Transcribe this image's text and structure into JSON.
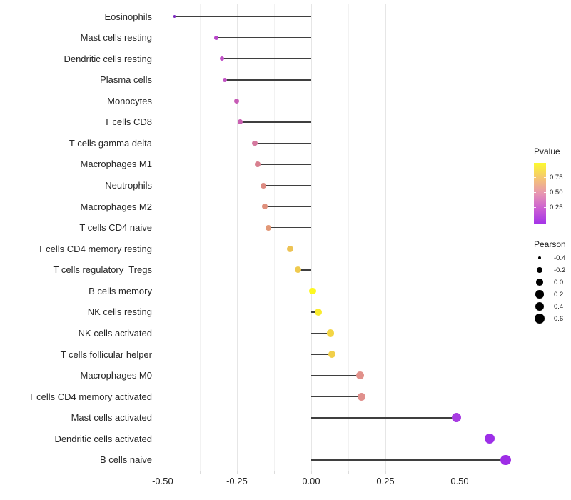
{
  "chart_data": {
    "type": "scatter",
    "subtype": "lollipop",
    "title": "",
    "xlabel": "",
    "ylabel": "",
    "xlim": [
      -0.519,
      0.709
    ],
    "x_ticks": [
      -0.5,
      -0.25,
      0,
      0.25,
      0.5
    ],
    "x_tick_labels": [
      "-0.50",
      "-0.25",
      "0.00",
      "0.25",
      "0.50"
    ],
    "x_minor_ticks": [
      -0.375,
      -0.125,
      0.125,
      0.375,
      0.625
    ],
    "grid": true,
    "baseline_x": 0,
    "rows": [
      {
        "label": "Eosinophils",
        "pearson": -0.46,
        "color": "#7c2bc0"
      },
      {
        "label": "Mast cells resting",
        "pearson": -0.32,
        "color": "#b846c9"
      },
      {
        "label": "Dendritic cells resting",
        "pearson": -0.3,
        "color": "#c04fc6"
      },
      {
        "label": "Plasma cells",
        "pearson": -0.29,
        "color": "#c253c3"
      },
      {
        "label": "Monocytes",
        "pearson": -0.25,
        "color": "#c75cb6"
      },
      {
        "label": "T cells CD8",
        "pearson": -0.24,
        "color": "#ca60b2"
      },
      {
        "label": "T cells gamma delta",
        "pearson": -0.19,
        "color": "#d5799f"
      },
      {
        "label": "Macrophages M1",
        "pearson": -0.18,
        "color": "#d8808f"
      },
      {
        "label": "Neutrophils",
        "pearson": -0.16,
        "color": "#dd8b82"
      },
      {
        "label": "Macrophages M2",
        "pearson": -0.155,
        "color": "#e0907d"
      },
      {
        "label": "T cells CD4 naive",
        "pearson": -0.145,
        "color": "#e29877"
      },
      {
        "label": "T cells CD4 memory resting",
        "pearson": -0.07,
        "color": "#edc355"
      },
      {
        "label": "T cells regulatory  Tregs",
        "pearson": -0.045,
        "color": "#efca4e"
      },
      {
        "label": "B cells memory",
        "pearson": 0.005,
        "color": "#fdf820"
      },
      {
        "label": "NK cells resting",
        "pearson": 0.025,
        "color": "#f9eb2e"
      },
      {
        "label": "NK cells activated",
        "pearson": 0.065,
        "color": "#f3d544"
      },
      {
        "label": "T cells follicular helper",
        "pearson": 0.07,
        "color": "#f1cf4a"
      },
      {
        "label": "Macrophages M0",
        "pearson": 0.165,
        "color": "#e1918b"
      },
      {
        "label": "T cells CD4 memory activated",
        "pearson": 0.17,
        "color": "#e0908d"
      },
      {
        "label": "Mast cells activated",
        "pearson": 0.49,
        "color": "#a83ce2"
      },
      {
        "label": "Dendritic cells activated",
        "pearson": 0.6,
        "color": "#9d2fe8"
      },
      {
        "label": "B cells naive",
        "pearson": 0.655,
        "color": "#9e2de6"
      }
    ],
    "legend_position": "right"
  },
  "legends": {
    "pvalue": {
      "title": "Pvalue",
      "tick_labels": [
        "0.75",
        "0.50",
        "0.25"
      ],
      "tick_fractions_from_top": [
        0.23,
        0.48,
        0.72
      ],
      "gradient_top_to_bottom": [
        "#fcfa2e",
        "#f5c573",
        "#e795b2",
        "#cb5ed3",
        "#a332e8"
      ]
    },
    "pearson": {
      "title": "Pearson",
      "items": [
        {
          "label": "-0.4",
          "value": -0.4
        },
        {
          "label": "-0.2",
          "value": -0.2
        },
        {
          "label": "0.0",
          "value": 0.0
        },
        {
          "label": "0.2",
          "value": 0.2
        },
        {
          "label": "0.4",
          "value": 0.4
        },
        {
          "label": "0.6",
          "value": 0.6
        }
      ]
    }
  },
  "colors": {
    "stem": "#3f3f3f",
    "grid_major": "#e6e6e6",
    "grid_minor": "#f2f2f2",
    "background": "#ffffff"
  }
}
